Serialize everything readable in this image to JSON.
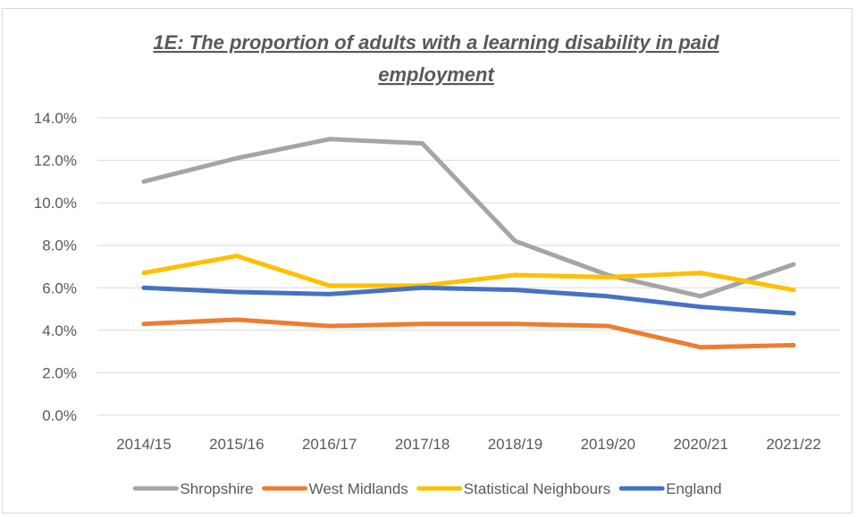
{
  "chart_data": {
    "type": "line",
    "title_lines": [
      "1E: The proportion of adults with a learning disability in paid",
      "employment"
    ],
    "categories": [
      "2014/15",
      "2015/16",
      "2016/17",
      "2017/18",
      "2018/19",
      "2019/20",
      "2020/21",
      "2021/22"
    ],
    "ylim": [
      0,
      14
    ],
    "yticks": [
      "0.0%",
      "2.0%",
      "4.0%",
      "6.0%",
      "8.0%",
      "10.0%",
      "12.0%",
      "14.0%"
    ],
    "grid": true,
    "legend_position": "bottom",
    "series": [
      {
        "name": "Shropshire",
        "color": "#a5a5a5",
        "values": [
          11.0,
          12.1,
          13.0,
          12.8,
          8.2,
          6.6,
          5.6,
          7.1
        ]
      },
      {
        "name": "West Midlands",
        "color": "#ed7d31",
        "values": [
          4.3,
          4.5,
          4.2,
          4.3,
          4.3,
          4.2,
          3.2,
          3.3
        ]
      },
      {
        "name": "Statistical Neighbours",
        "color": "#ffc000",
        "values": [
          6.7,
          7.5,
          6.1,
          6.1,
          6.6,
          6.5,
          6.7,
          5.9
        ]
      },
      {
        "name": "England",
        "color": "#4472c4",
        "values": [
          6.0,
          5.8,
          5.7,
          6.0,
          5.9,
          5.6,
          5.1,
          4.8
        ]
      }
    ]
  }
}
